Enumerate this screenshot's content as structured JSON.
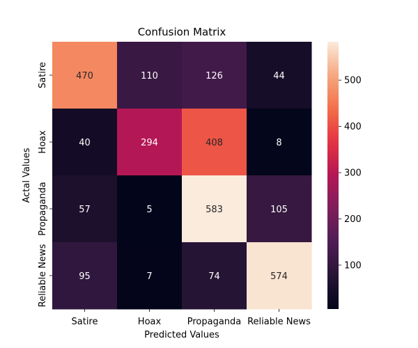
{
  "chart_data": {
    "type": "heatmap",
    "title": "Confusion Matrix",
    "xlabel": "Predicted Values",
    "ylabel": "Actal Values",
    "x_categories": [
      "Satire",
      "Hoax",
      "Propaganda",
      "Reliable News"
    ],
    "y_categories": [
      "Satire",
      "Hoax",
      "Propaganda",
      "Reliable News"
    ],
    "values": [
      [
        470,
        110,
        126,
        44
      ],
      [
        40,
        294,
        408,
        8
      ],
      [
        57,
        5,
        583,
        105
      ],
      [
        95,
        7,
        74,
        574
      ]
    ],
    "colorbar": {
      "vmin": 5,
      "vmax": 583,
      "ticks": [
        100,
        200,
        300,
        400,
        500
      ],
      "colormap": "rocket"
    },
    "grid": false
  }
}
